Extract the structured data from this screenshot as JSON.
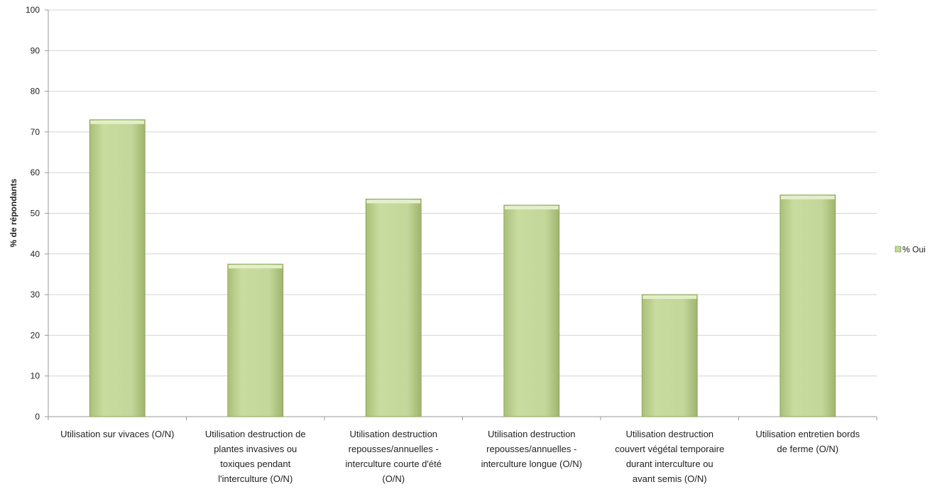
{
  "chart_data": {
    "type": "bar",
    "title": "",
    "xlabel": "",
    "ylabel": "% de répondants",
    "ylim": [
      0,
      100
    ],
    "yticks": [
      0,
      10,
      20,
      30,
      40,
      50,
      60,
      70,
      80,
      90,
      100
    ],
    "grid": true,
    "legend_position": "right",
    "categories": [
      [
        "Utilisation sur vivaces (O/N)"
      ],
      [
        "Utilisation destruction de",
        "plantes invasives ou",
        "toxiques pendant",
        "l'interculture (O/N)"
      ],
      [
        "Utilisation destruction",
        "repousses/annuelles -",
        "interculture courte d'été",
        "(O/N)"
      ],
      [
        "Utilisation destruction",
        "repousses/annuelles -",
        "interculture longue (O/N)"
      ],
      [
        "Utilisation destruction",
        "couvert végétal temporaire",
        "durant interculture ou",
        "avant semis (O/N)"
      ],
      [
        "Utilisation entretien bords",
        "de ferme (O/N)"
      ]
    ],
    "series": [
      {
        "name": "% Oui",
        "color": "#c4d79b",
        "values": [
          73,
          37.5,
          53.5,
          52,
          30,
          54.5
        ]
      }
    ]
  }
}
